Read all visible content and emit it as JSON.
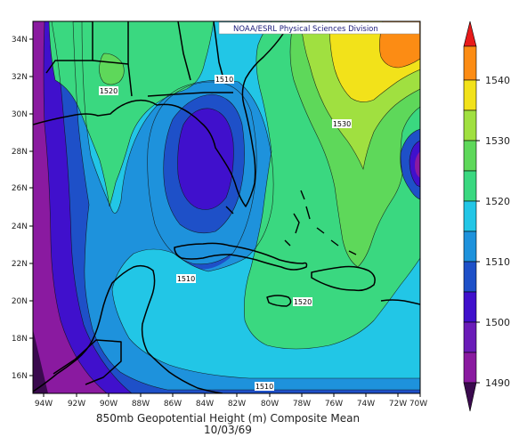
{
  "credit": "NOAA/ESRL Physical Sciences Division",
  "caption_line1": "850mb Geopotential Height (m) Composite Mean",
  "caption_line2": "10/03/69",
  "x_ticks": [
    "94W",
    "92W",
    "90W",
    "88W",
    "86W",
    "84W",
    "82W",
    "80W",
    "78W",
    "76W",
    "74W",
    "72W",
    "70W"
  ],
  "y_ticks": [
    "34N",
    "32N",
    "30N",
    "28N",
    "26N",
    "24N",
    "22N",
    "20N",
    "18N",
    "16N"
  ],
  "colorbar_ticks": [
    "1540",
    "1530",
    "1520",
    "1510",
    "1500",
    "1490"
  ],
  "contour_labels": {
    "l1510_north": "1510",
    "l1520_west": "1520",
    "l1530": "1530",
    "l1510_west": "1510",
    "l1520_south": "1520",
    "l1510_south": "1510"
  },
  "colors": {
    "c1480": "#3a0a4e",
    "c1490": "#8a1aa0",
    "c1495": "#6a1bb8",
    "c1500": "#4010cc",
    "c1505": "#1e50c8",
    "c1510": "#1e92dc",
    "c1515": "#22c6e6",
    "c1520": "#3ad880",
    "c1525": "#5ed85a",
    "c1530": "#a0e040",
    "c1535": "#f2e21a",
    "c1540": "#fc8c14",
    "c1545": "#e81a1a"
  }
}
